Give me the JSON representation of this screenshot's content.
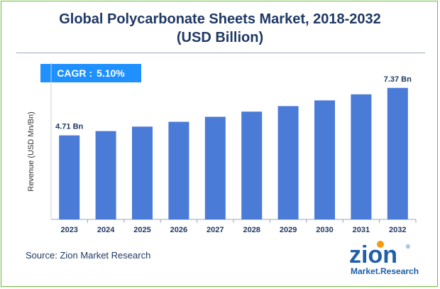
{
  "title_line1": "Global Polycarbonate Sheets Market, 2018-2032",
  "title_line2": "(USD Billion)",
  "cagr": {
    "label": "CAGR :",
    "value": "5.10%"
  },
  "source": "Source: Zion Market Research",
  "logo": {
    "word": "zion",
    "tagline": "Market.Research",
    "registered": "®"
  },
  "colors": {
    "bar": "#4a7bd6",
    "title": "#1f3864",
    "cagr_bg": "#1e90ff",
    "border": "#6cbd3f",
    "logo_blue": "#1f5fa8",
    "logo_orange": "#f39c12"
  },
  "chart_data": {
    "type": "bar",
    "ylabel": "Revenue (USD Mn/Bn)",
    "categories": [
      "2023",
      "2024",
      "2025",
      "2026",
      "2027",
      "2028",
      "2029",
      "2030",
      "2031",
      "2032"
    ],
    "values": [
      4.71,
      4.95,
      5.2,
      5.47,
      5.75,
      6.04,
      6.35,
      6.67,
      7.01,
      7.37
    ],
    "data_labels": {
      "0": "4.71 Bn",
      "9": "7.37 Bn"
    },
    "ylim": [
      0,
      7.6
    ],
    "grid": false
  }
}
